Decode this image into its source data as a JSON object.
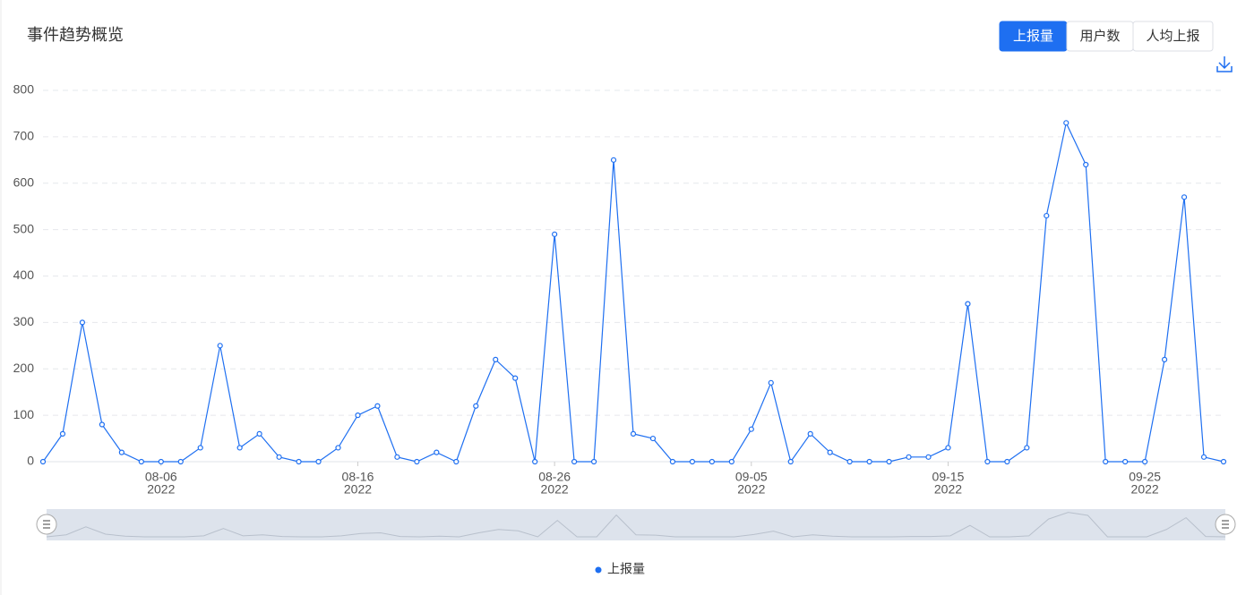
{
  "chart_data": {
    "type": "line",
    "title": "事件趋势概览",
    "buttons": [
      "上报量",
      "用户数",
      "人均上报"
    ],
    "active_button": 0,
    "x": [
      "2022-07-31",
      "2022-08-01",
      "2022-08-02",
      "2022-08-03",
      "2022-08-04",
      "2022-08-05",
      "2022-08-06",
      "2022-08-07",
      "2022-08-08",
      "2022-08-09",
      "2022-08-10",
      "2022-08-11",
      "2022-08-12",
      "2022-08-13",
      "2022-08-14",
      "2022-08-15",
      "2022-08-16",
      "2022-08-17",
      "2022-08-18",
      "2022-08-19",
      "2022-08-20",
      "2022-08-21",
      "2022-08-22",
      "2022-08-23",
      "2022-08-24",
      "2022-08-25",
      "2022-08-26",
      "2022-08-27",
      "2022-08-28",
      "2022-08-29",
      "2022-08-30",
      "2022-08-31",
      "2022-09-01",
      "2022-09-02",
      "2022-09-03",
      "2022-09-04",
      "2022-09-05",
      "2022-09-06",
      "2022-09-07",
      "2022-09-08",
      "2022-09-09",
      "2022-09-10",
      "2022-09-11",
      "2022-09-12",
      "2022-09-13",
      "2022-09-14",
      "2022-09-15",
      "2022-09-16",
      "2022-09-17",
      "2022-09-18",
      "2022-09-19",
      "2022-09-20",
      "2022-09-21",
      "2022-09-22",
      "2022-09-23",
      "2022-09-24",
      "2022-09-25",
      "2022-09-26",
      "2022-09-27",
      "2022-09-28",
      "2022-09-29"
    ],
    "series": [
      {
        "name": "上报量",
        "color": "#1e6ff1",
        "values": [
          0,
          60,
          300,
          80,
          20,
          0,
          0,
          0,
          30,
          250,
          30,
          60,
          10,
          0,
          0,
          30,
          100,
          120,
          10,
          0,
          20,
          0,
          120,
          220,
          180,
          0,
          490,
          0,
          0,
          650,
          60,
          50,
          0,
          0,
          0,
          0,
          70,
          170,
          0,
          60,
          20,
          0,
          0,
          0,
          10,
          10,
          30,
          340,
          0,
          0,
          30,
          530,
          730,
          640,
          0,
          0,
          0,
          220,
          570,
          10,
          0
        ]
      }
    ],
    "xlim": [
      "2022-07-31",
      "2022-09-29"
    ],
    "xticks": [
      {
        "value": "2022-08-06",
        "label": [
          "08-06",
          "2022"
        ]
      },
      {
        "value": "2022-08-16",
        "label": [
          "08-16",
          "2022"
        ]
      },
      {
        "value": "2022-08-26",
        "label": [
          "08-26",
          "2022"
        ]
      },
      {
        "value": "2022-09-05",
        "label": [
          "09-05",
          "2022"
        ]
      },
      {
        "value": "2022-09-15",
        "label": [
          "09-15",
          "2022"
        ]
      },
      {
        "value": "2022-09-25",
        "label": [
          "09-25",
          "2022"
        ]
      }
    ],
    "ylim": [
      0,
      800
    ],
    "yticks": [
      0,
      100,
      200,
      300,
      400,
      500,
      600,
      700,
      800
    ],
    "grid": true
  }
}
